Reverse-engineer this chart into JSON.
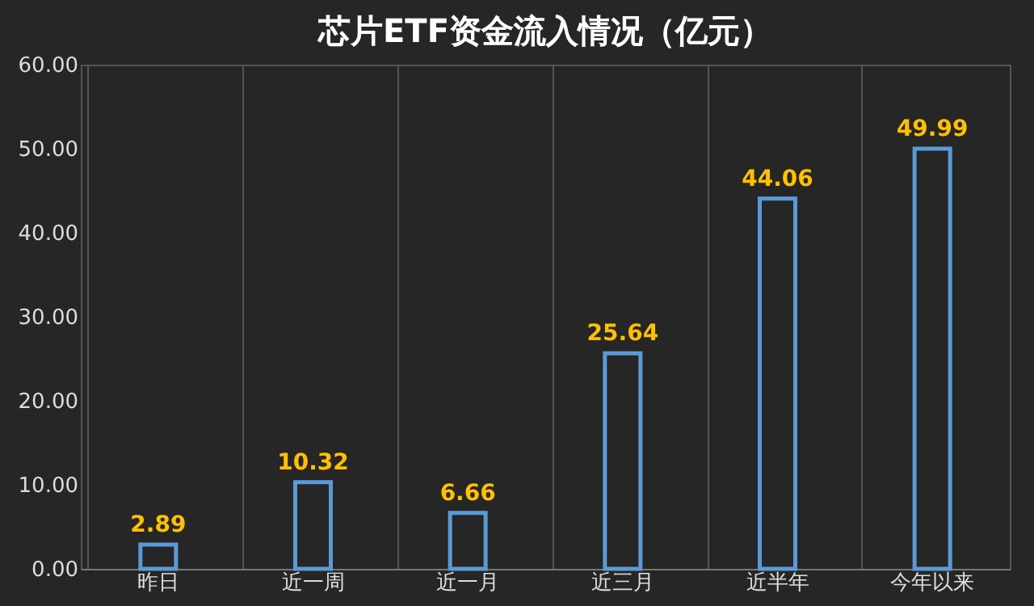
{
  "chart_data": {
    "type": "bar",
    "title": "芯片ETF资金流入情况（亿元）",
    "categories": [
      "昨日",
      "近一周",
      "近一月",
      "近三月",
      "近半年",
      "今年以来"
    ],
    "values": [
      2.89,
      10.32,
      6.66,
      25.64,
      44.06,
      49.99
    ],
    "color": "#5b9bd5",
    "ylim": [
      0,
      60
    ],
    "yticks": [
      {
        "value": 0,
        "label": "0.00"
      },
      {
        "value": 10,
        "label": "10.00"
      },
      {
        "value": 20,
        "label": "20.00"
      },
      {
        "value": 30,
        "label": "30.00"
      },
      {
        "value": 40,
        "label": "40.00"
      },
      {
        "value": 50,
        "label": "50.00"
      },
      {
        "value": 60,
        "label": "60.00"
      }
    ],
    "grid": "x",
    "data_labels": true
  }
}
